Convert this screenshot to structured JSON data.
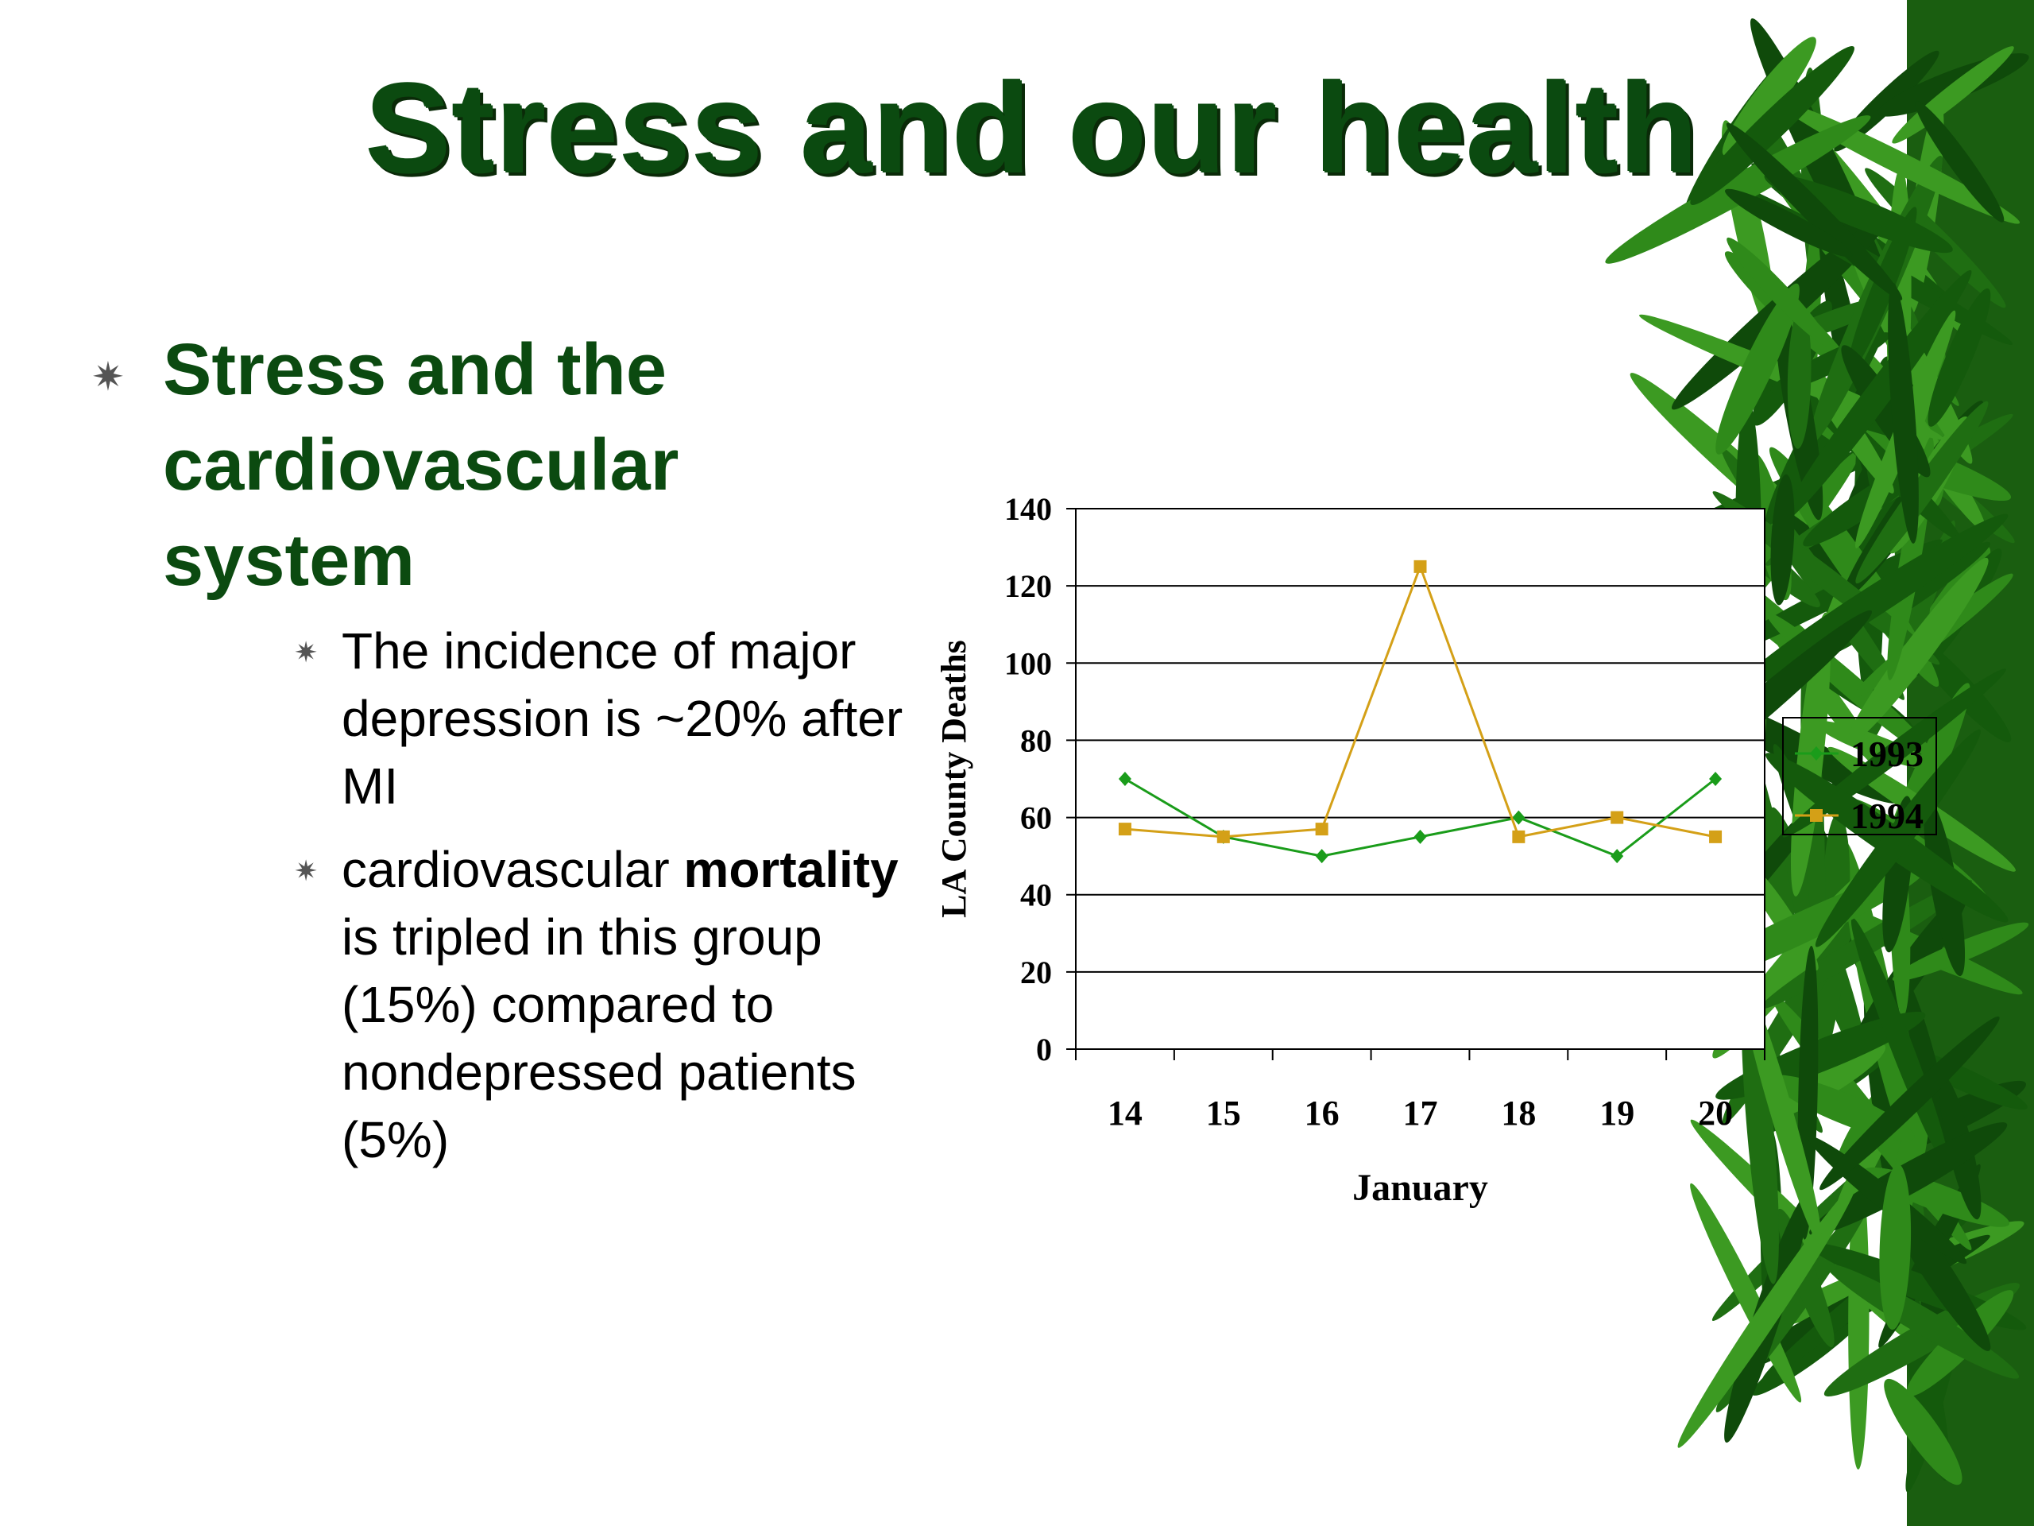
{
  "slide": {
    "title": "Stress and our health",
    "bullet": "Stress and the cardiovascular system",
    "sub_bullets": [
      {
        "parts": [
          {
            "text": "The incidence of major depression is ~20% after MI",
            "bold": false
          }
        ]
      },
      {
        "parts": [
          {
            "text": "cardiovascular ",
            "bold": false
          },
          {
            "text": "mortality",
            "bold": true
          },
          {
            "text": " is tripled in this group (15%) compared to nondepressed patients (5%)",
            "bold": false
          }
        ]
      }
    ],
    "bullet_icon": "asterisk-star-icon",
    "decoration": "bamboo-leaves"
  },
  "chart_data": {
    "type": "line",
    "title": "",
    "xlabel": "January",
    "ylabel": "LA County Deaths",
    "categories": [
      "14",
      "15",
      "16",
      "17",
      "18",
      "19",
      "20"
    ],
    "ylim": [
      0,
      140
    ],
    "yticks": [
      "0",
      "20",
      "40",
      "60",
      "80",
      "100",
      "120",
      "140"
    ],
    "grid": true,
    "legend": "right",
    "series": [
      {
        "name": "1993",
        "values": [
          70,
          55,
          50,
          55,
          60,
          50,
          70
        ],
        "color": "#1a9c1a",
        "marker": "diamond"
      },
      {
        "name": "1994",
        "values": [
          57,
          55,
          57,
          125,
          55,
          60,
          55
        ],
        "color": "#d4a017",
        "marker": "square"
      }
    ]
  }
}
